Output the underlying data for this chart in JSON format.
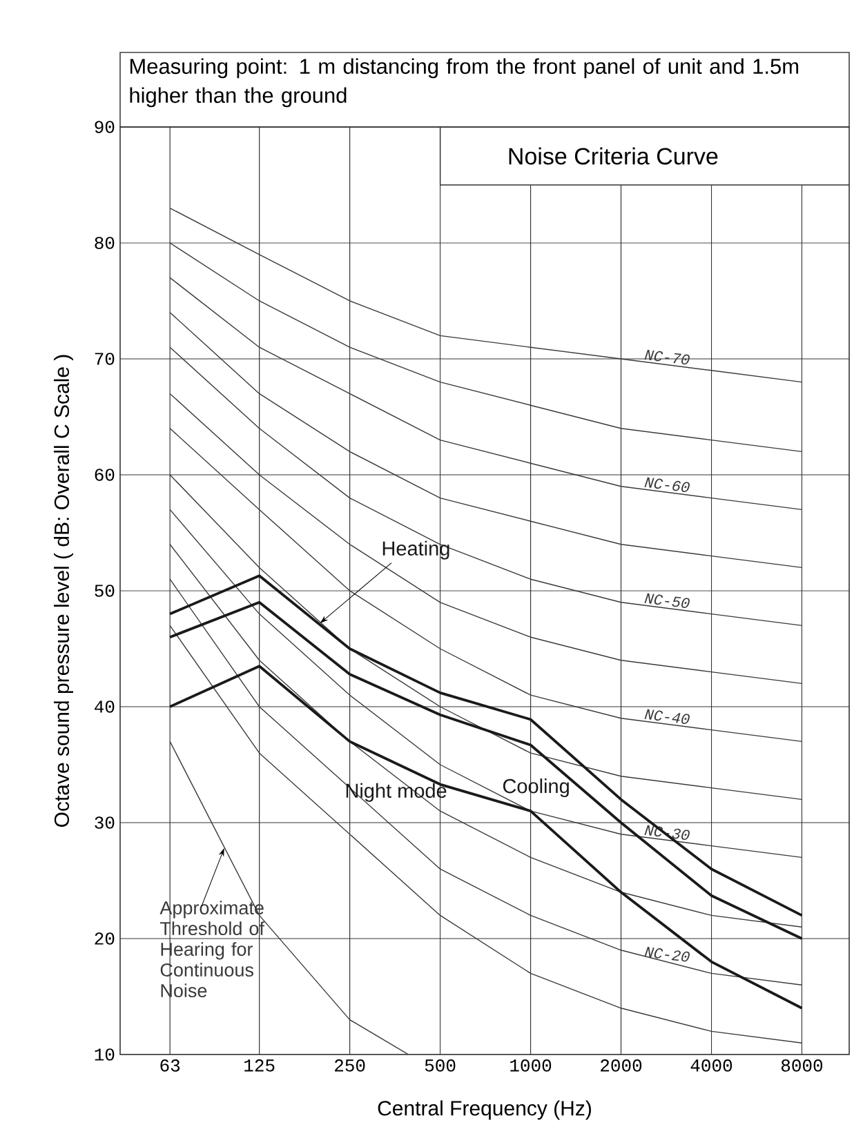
{
  "chart_data": {
    "type": "line",
    "subtitle": "Measuring point: 1 m distancing from the front panel of unit and 1.5m higher than the ground",
    "xlabel": "Central Frequency (Hz)",
    "ylabel": "Octave sound pressure level ( dB: Overall C Scale )",
    "annotations": [
      "Noise Criteria Curve"
    ],
    "x": [
      63,
      125,
      250,
      500,
      1000,
      2000,
      4000,
      8000
    ],
    "log": "x",
    "xlim": [
      43,
      11500
    ],
    "xticks": [
      63,
      125,
      250,
      500,
      1000,
      2000,
      4000,
      8000
    ],
    "ylim": [
      10,
      90
    ],
    "yticks": [
      10,
      20,
      30,
      40,
      50,
      60,
      70,
      80,
      90
    ],
    "grid": true,
    "legend": false,
    "marker": "none",
    "line_style": "solid",
    "series": [
      {
        "name": "NC-70",
        "color": "#3a3a3a",
        "values": [
          83,
          79,
          75,
          72,
          71,
          70,
          69,
          68
        ]
      },
      {
        "color": "#3a3a3a",
        "values": [
          80,
          75,
          71,
          68,
          66,
          64,
          63,
          62
        ]
      },
      {
        "name": "NC-60",
        "color": "#3a3a3a",
        "values": [
          77,
          71,
          67,
          63,
          61,
          59,
          58,
          57
        ]
      },
      {
        "color": "#3a3a3a",
        "values": [
          74,
          67,
          62,
          58,
          56,
          54,
          53,
          52
        ]
      },
      {
        "name": "NC-50",
        "color": "#3a3a3a",
        "values": [
          71,
          64,
          58,
          54,
          51,
          49,
          48,
          47
        ]
      },
      {
        "color": "#3a3a3a",
        "values": [
          67,
          60,
          54,
          49,
          46,
          44,
          43,
          42
        ]
      },
      {
        "name": "NC-40",
        "color": "#3a3a3a",
        "values": [
          64,
          57,
          50,
          45,
          41,
          39,
          38,
          37
        ]
      },
      {
        "color": "#3a3a3a",
        "values": [
          60,
          52,
          45,
          40,
          36,
          34,
          33,
          32
        ]
      },
      {
        "name": "NC-30",
        "color": "#3a3a3a",
        "values": [
          57,
          48,
          41,
          35,
          31,
          29,
          28,
          27
        ]
      },
      {
        "color": "#3a3a3a",
        "values": [
          54,
          44,
          37,
          31,
          27,
          24,
          22,
          21
        ]
      },
      {
        "name": "NC-20",
        "color": "#3a3a3a",
        "values": [
          51,
          40,
          33,
          26,
          22,
          19,
          17,
          16
        ]
      },
      {
        "color": "#3a3a3a",
        "values": [
          47,
          36,
          29,
          22,
          17,
          14,
          12,
          11
        ]
      },
      {
        "name": "Approximate Threshold of Hearing for Continuous Noise",
        "color": "#3a3a3a",
        "x": [
          63,
          125,
          250,
          392
        ],
        "values": [
          37,
          22,
          13,
          10
        ]
      },
      {
        "name": "Heating",
        "color": "#1a1a1a",
        "values": [
          48,
          51.3,
          45,
          41.2,
          38.9,
          32,
          26,
          22
        ]
      },
      {
        "name": "Cooling",
        "color": "#1a1a1a",
        "values": [
          46,
          49,
          42.8,
          39.3,
          36.7,
          30,
          23.7,
          20
        ]
      },
      {
        "name": "Night mode",
        "color": "#1a1a1a",
        "values": [
          40,
          43.5,
          37,
          33.3,
          31,
          24,
          18,
          14
        ]
      }
    ]
  }
}
